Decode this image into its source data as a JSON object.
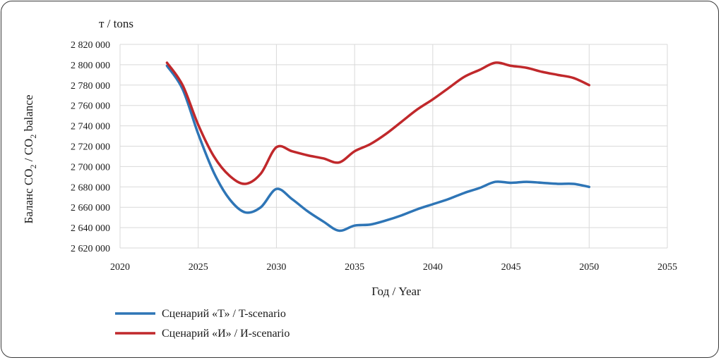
{
  "chart_data": {
    "type": "line",
    "unit_label": "т / tons",
    "ylabel_main": "Баланс CO",
    "ylabel_sub1": "2",
    "ylabel_mid": " / CO",
    "ylabel_sub2": "2",
    "ylabel_end": " balance",
    "xlabel": "Год / Year",
    "xlim": [
      2020,
      2055
    ],
    "ylim": [
      2620000,
      2820000
    ],
    "x_ticks": [
      2020,
      2025,
      2030,
      2035,
      2040,
      2045,
      2050,
      2055
    ],
    "x_tick_labels": [
      "2020",
      "2025",
      "2030",
      "2035",
      "2040",
      "2045",
      "2050",
      "2055"
    ],
    "y_ticks": [
      2620000,
      2640000,
      2660000,
      2680000,
      2700000,
      2720000,
      2740000,
      2760000,
      2780000,
      2800000,
      2820000
    ],
    "y_tick_labels": [
      "2 620 000",
      "2 640 000",
      "2 660 000",
      "2 680 000",
      "2 700 000",
      "2 720 000",
      "2 740 000",
      "2 760 000",
      "2 780 000",
      "2 800 000",
      "2 820 000"
    ],
    "grid": true,
    "legend_position": "bottom-left",
    "x": [
      2023,
      2024,
      2025,
      2026,
      2027,
      2028,
      2029,
      2030,
      2031,
      2032,
      2033,
      2034,
      2035,
      2036,
      2037,
      2038,
      2039,
      2040,
      2041,
      2042,
      2043,
      2044,
      2045,
      2046,
      2047,
      2048,
      2049,
      2050
    ],
    "series": [
      {
        "name": "Сценарий «Т» / T-scenario",
        "color": "#2e75b6",
        "values": [
          2799000,
          2776000,
          2732000,
          2694000,
          2668000,
          2655000,
          2660000,
          2678000,
          2668000,
          2656000,
          2646000,
          2637000,
          2642000,
          2643000,
          2647000,
          2652000,
          2658000,
          2663000,
          2668000,
          2674000,
          2679000,
          2685000,
          2684000,
          2685000,
          2684000,
          2683000,
          2683000,
          2680000
        ]
      },
      {
        "name": "Сценарий «И» / И-scenario",
        "color": "#c0282b",
        "values": [
          2802000,
          2780000,
          2741000,
          2710000,
          2691000,
          2683000,
          2693000,
          2719000,
          2715000,
          2711000,
          2708000,
          2704000,
          2715000,
          2722000,
          2732000,
          2744000,
          2756000,
          2766000,
          2777000,
          2788000,
          2795000,
          2802000,
          2799000,
          2797000,
          2793000,
          2790000,
          2787000,
          2780000
        ]
      }
    ]
  }
}
